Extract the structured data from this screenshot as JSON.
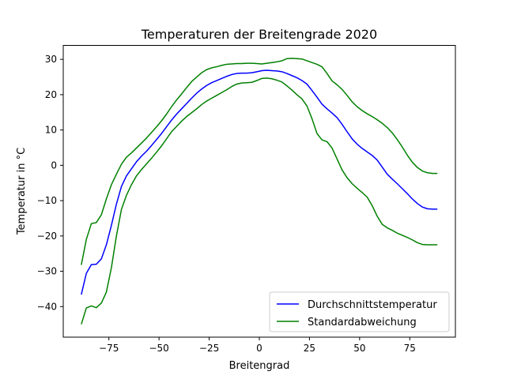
{
  "chart_data": {
    "type": "line",
    "title": "Temperaturen der Breitengrade 2020",
    "xlabel": "Breitengrad",
    "ylabel": "Temperatur in °C",
    "xlim": [
      -97.75,
      97.75
    ],
    "ylim": [
      -48.65,
      33.95
    ],
    "xticks": [
      -75,
      -50,
      -25,
      0,
      25,
      50,
      75
    ],
    "xtick_labels": [
      "−75",
      "−50",
      "−25",
      "0",
      "25",
      "50",
      "75"
    ],
    "yticks": [
      -40,
      -30,
      -20,
      -10,
      0,
      10,
      20,
      30
    ],
    "ytick_labels": [
      "−40",
      "−30",
      "−20",
      "−10",
      "0",
      "10",
      "20",
      "30"
    ],
    "grid": false,
    "legend": "lower-right",
    "x": [
      -88.75,
      -86.25,
      -83.75,
      -81.25,
      -78.75,
      -76.25,
      -73.75,
      -71.25,
      -68.75,
      -66.25,
      -63.75,
      -61.25,
      -58.75,
      -56.25,
      -53.75,
      -51.25,
      -48.75,
      -46.25,
      -43.75,
      -41.25,
      -38.75,
      -36.25,
      -33.75,
      -31.25,
      -28.75,
      -26.25,
      -23.75,
      -21.25,
      -18.75,
      -16.25,
      -13.75,
      -11.25,
      -8.75,
      -6.25,
      -3.75,
      -1.25,
      1.25,
      3.75,
      6.25,
      8.75,
      11.25,
      13.75,
      16.25,
      18.75,
      21.25,
      23.75,
      26.25,
      28.75,
      31.25,
      33.75,
      36.25,
      38.75,
      41.25,
      43.75,
      46.25,
      48.75,
      51.25,
      53.75,
      56.25,
      58.75,
      61.25,
      63.75,
      66.25,
      68.75,
      71.25,
      73.75,
      76.25,
      78.75,
      81.25,
      83.75,
      86.25,
      88.75
    ],
    "series": [
      {
        "name": "Durchschnittstemperatur",
        "color": "#0000ff",
        "values": [
          -36.6,
          -30.6,
          -28.1,
          -28.0,
          -26.5,
          -22.5,
          -17.0,
          -11.0,
          -6.0,
          -3.0,
          -1.0,
          1.0,
          2.6,
          4.0,
          5.6,
          7.3,
          9.0,
          10.9,
          12.8,
          14.5,
          16.0,
          17.5,
          19.0,
          20.4,
          21.6,
          22.6,
          23.4,
          24.0,
          24.6,
          25.2,
          25.7,
          26.0,
          26.1,
          26.1,
          26.2,
          26.5,
          26.8,
          26.9,
          26.8,
          26.7,
          26.5,
          26.0,
          25.4,
          24.8,
          24.0,
          23.0,
          21.2,
          19.3,
          17.3,
          16.0,
          14.8,
          13.5,
          11.6,
          9.5,
          7.5,
          6.0,
          4.8,
          3.8,
          2.8,
          1.5,
          -0.5,
          -2.5,
          -3.9,
          -5.2,
          -6.6,
          -8.0,
          -9.5,
          -10.8,
          -11.8,
          -12.3,
          -12.4,
          -12.4
        ]
      },
      {
        "name": "Standardabweichung",
        "color": "#008000",
        "values": [
          -28.2,
          -21.0,
          -16.5,
          -16.2,
          -14.0,
          -9.5,
          -5.5,
          -2.5,
          0.3,
          2.3,
          3.5,
          4.9,
          6.3,
          7.7,
          9.3,
          10.9,
          12.6,
          14.5,
          16.6,
          18.5,
          20.2,
          22.0,
          23.7,
          25.0,
          26.2,
          27.1,
          27.6,
          27.9,
          28.3,
          28.6,
          28.7,
          28.8,
          28.8,
          28.9,
          28.9,
          28.8,
          28.7,
          28.9,
          29.1,
          29.3,
          29.6,
          30.2,
          30.3,
          30.2,
          30.1,
          29.6,
          29.1,
          28.6,
          27.9,
          26.0,
          23.9,
          22.8,
          21.5,
          19.8,
          18.0,
          16.6,
          15.5,
          14.6,
          13.8,
          12.9,
          11.9,
          10.7,
          9.2,
          7.3,
          5.2,
          2.9,
          0.9,
          -0.6,
          -1.6,
          -2.1,
          -2.3,
          -2.3
        ]
      },
      {
        "name": "",
        "color": "#008000",
        "values": [
          -45.0,
          -40.4,
          -39.8,
          -40.3,
          -39.0,
          -35.9,
          -29.0,
          -20.0,
          -12.5,
          -8.5,
          -5.5,
          -3.0,
          -1.2,
          0.4,
          2.0,
          3.7,
          5.5,
          7.5,
          9.5,
          11.0,
          12.5,
          13.8,
          14.9,
          16.0,
          17.2,
          18.2,
          19.0,
          19.8,
          20.6,
          21.4,
          22.3,
          23.0,
          23.3,
          23.4,
          23.5,
          24.0,
          24.6,
          24.7,
          24.5,
          24.1,
          23.6,
          22.5,
          21.3,
          20.0,
          18.8,
          16.8,
          13.2,
          9.0,
          7.2,
          6.7,
          4.9,
          1.8,
          -1.3,
          -3.5,
          -5.2,
          -6.5,
          -7.7,
          -9.0,
          -11.4,
          -14.4,
          -16.7,
          -17.7,
          -18.4,
          -19.2,
          -19.8,
          -20.4,
          -21.1,
          -21.9,
          -22.4,
          -22.5,
          -22.5,
          -22.5
        ]
      }
    ]
  }
}
